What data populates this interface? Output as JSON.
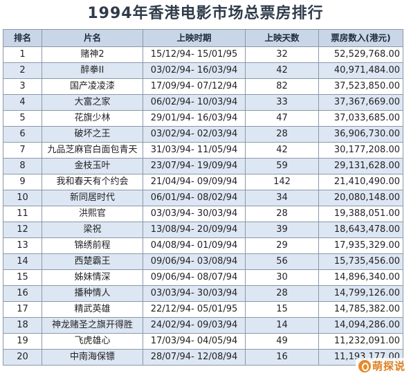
{
  "title": "1994年香港电影市场总票房排行",
  "table": {
    "headers": [
      "排名",
      "片名",
      "上映时期",
      "上映天数",
      "票房数入(港元)"
    ],
    "rows": [
      {
        "rank": "1",
        "name": "赌神2",
        "period": "15/12/94- 15/01/95",
        "days": "32",
        "box": "52,529,768.00"
      },
      {
        "rank": "2",
        "name": "醉拳II",
        "period": "03/02/94- 16/03/94",
        "days": "42",
        "box": "40,971,484.00"
      },
      {
        "rank": "3",
        "name": "国产凌凌漆",
        "period": "17/09/94- 07/12/94",
        "days": "82",
        "box": "37,523,850.00"
      },
      {
        "rank": "4",
        "name": "大富之家",
        "period": "06/02/94- 10/03/94",
        "days": "33",
        "box": "37,367,669.00"
      },
      {
        "rank": "5",
        "name": "花旗少林",
        "period": "29/01/94- 16/03/94",
        "days": "47",
        "box": "37,033,685.00"
      },
      {
        "rank": "6",
        "name": "破坏之王",
        "period": "03/02/94- 02/03/94",
        "days": "28",
        "box": "36,906,730.00"
      },
      {
        "rank": "7",
        "name": "九品芝麻官白面包青天",
        "period": "31/03/94- 11/05/94",
        "days": "42",
        "box": "30,177,208.00"
      },
      {
        "rank": "8",
        "name": "金枝玉叶",
        "period": "23/07/94- 19/09/94",
        "days": "59",
        "box": "29,131,628.00"
      },
      {
        "rank": "9",
        "name": "我和春天有个约会",
        "period": "21/04/94- 09/09/94",
        "days": "142",
        "box": "21,410,490.00"
      },
      {
        "rank": "10",
        "name": "新同居时代",
        "period": "06/01/94- 08/02/94",
        "days": "34",
        "box": "20,080,148.00"
      },
      {
        "rank": "11",
        "name": "洪熙官",
        "period": "03/03/94- 30/03/94",
        "days": "28",
        "box": "19,388,051.00"
      },
      {
        "rank": "12",
        "name": "梁祝",
        "period": "13/08/94- 20/09/94",
        "days": "39",
        "box": "18,643,478.00"
      },
      {
        "rank": "13",
        "name": "锦绣前程",
        "period": "04/08/94- 01/09/94",
        "days": "29",
        "box": "17,935,329.00"
      },
      {
        "rank": "14",
        "name": "西楚霸王",
        "period": "09/06/94- 03/08/94",
        "days": "56",
        "box": "15,735,456.00"
      },
      {
        "rank": "15",
        "name": "姊妹情深",
        "period": "09/06/94- 08/07/94",
        "days": "30",
        "box": "14,896,340.00"
      },
      {
        "rank": "16",
        "name": "播种情人",
        "period": "03/03/94- 30/03/94",
        "days": "28",
        "box": "14,799,126.00"
      },
      {
        "rank": "17",
        "name": "精武英雄",
        "period": "22/12/94- 05/01/95",
        "days": "15",
        "box": "14,785,382.00"
      },
      {
        "rank": "18",
        "name": "神龙赌圣之旗开得胜",
        "period": "24/02/94- 09/03/94",
        "days": "14",
        "box": "14,094,286.00"
      },
      {
        "rank": "19",
        "name": "飞虎雄心",
        "period": "17/03/94- 04/05/94",
        "days": "49",
        "box": "11,232,091.00"
      },
      {
        "rank": "20",
        "name": "中南海保镖",
        "period": "28/07/94- 12/08/94",
        "days": "16",
        "box": "11,193,177.00"
      }
    ]
  },
  "watermark": {
    "text": "萌探说",
    "icon": "mengtan-logo-icon",
    "color": "#e07f1f"
  }
}
